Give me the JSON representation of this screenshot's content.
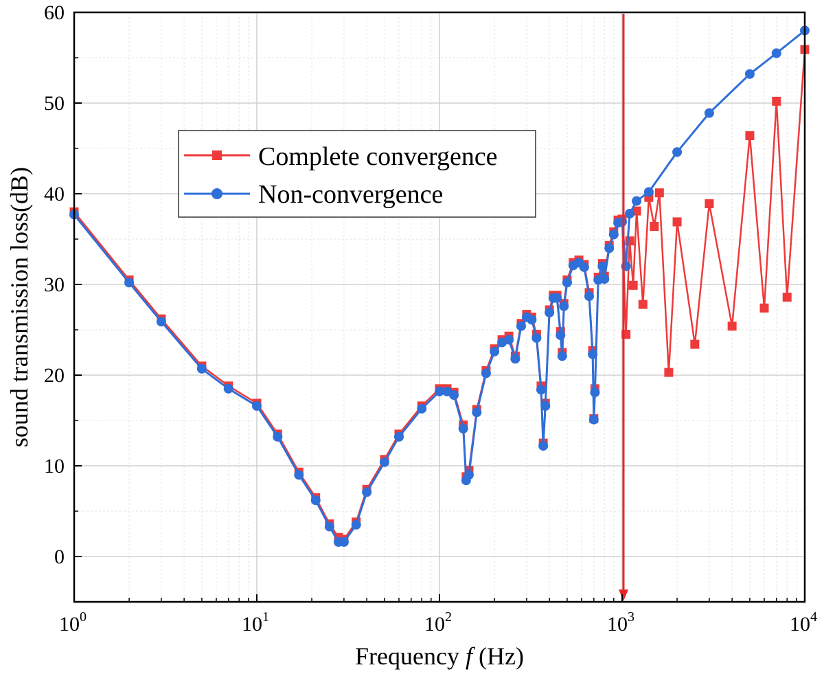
{
  "chart_data": {
    "type": "line",
    "xlabel_prefix": "Frequency ",
    "xlabel_var": "f",
    "xlabel_suffix": " (Hz)",
    "ylabel": "sound transmission loss(dB)",
    "xscale": "log",
    "xlim": [
      1,
      10000
    ],
    "ylim": [
      -5,
      60
    ],
    "x_ticks": [
      {
        "base": "10",
        "exp": "0",
        "value": 1
      },
      {
        "base": "10",
        "exp": "1",
        "value": 10
      },
      {
        "base": "10",
        "exp": "2",
        "value": 100
      },
      {
        "base": "10",
        "exp": "3",
        "value": 1000
      },
      {
        "base": "10",
        "exp": "4",
        "value": 10000
      }
    ],
    "y_ticks": [
      "0",
      "10",
      "20",
      "30",
      "40",
      "50",
      "60"
    ],
    "grid": true,
    "legend_position": "upper-left",
    "annotation": {
      "type": "vertical-arrow",
      "x": 1000,
      "from_y": 60,
      "to_y": -5,
      "color": "#e8262a"
    },
    "series": [
      {
        "name": "Complete convergence",
        "color": "#ee3a3a",
        "marker": "square",
        "x": [
          1,
          2,
          3,
          5,
          7,
          10,
          13,
          17,
          21,
          25,
          28,
          30,
          35,
          40,
          50,
          60,
          80,
          100,
          110,
          120,
          135,
          140,
          145,
          160,
          180,
          200,
          220,
          240,
          260,
          280,
          300,
          320,
          340,
          360,
          370,
          380,
          400,
          420,
          440,
          460,
          470,
          480,
          500,
          540,
          580,
          620,
          660,
          690,
          700,
          710,
          740,
          780,
          800,
          850,
          900,
          950,
          1000,
          1050,
          1100,
          1150,
          1200,
          1300,
          1400,
          1500,
          1600,
          1800,
          2000,
          2500,
          3000,
          4000,
          5000,
          6000,
          7000,
          8000,
          10000
        ],
        "y": [
          38,
          30.5,
          26.2,
          21,
          18.8,
          16.9,
          13.5,
          9.3,
          6.5,
          3.6,
          2.1,
          1.9,
          3.8,
          7.4,
          10.7,
          13.5,
          16.6,
          18.5,
          18.5,
          18.1,
          14.5,
          8.8,
          9.5,
          16.2,
          20.5,
          22.9,
          23.9,
          24.3,
          22.1,
          25.7,
          26.7,
          26.4,
          24.5,
          18.8,
          12.5,
          16.9,
          27.2,
          28.8,
          28.8,
          24.8,
          22.5,
          27.9,
          30.5,
          32.4,
          32.7,
          32.2,
          29.1,
          22.7,
          15.2,
          18.5,
          30.8,
          32.3,
          30.9,
          34.3,
          35.8,
          37.1,
          37.2,
          24.5,
          34.8,
          29.9,
          38.1,
          27.8,
          39.6,
          36.4,
          40.1,
          20.3,
          36.9,
          23.4,
          38.9,
          25.4,
          46.4,
          27.4,
          50.2,
          28.6,
          55.9
        ]
      },
      {
        "name": "Non-convergence",
        "color": "#2f6fd8",
        "marker": "circle",
        "x": [
          1,
          2,
          3,
          5,
          7,
          10,
          13,
          17,
          21,
          25,
          28,
          30,
          35,
          40,
          50,
          60,
          80,
          100,
          110,
          120,
          135,
          140,
          145,
          160,
          180,
          200,
          220,
          240,
          260,
          280,
          300,
          320,
          340,
          360,
          370,
          380,
          400,
          420,
          440,
          460,
          470,
          480,
          500,
          540,
          580,
          620,
          660,
          690,
          700,
          710,
          740,
          780,
          800,
          850,
          900,
          950,
          1000,
          1050,
          1100,
          1200,
          1400,
          2000,
          3000,
          5000,
          7000,
          10000
        ],
        "y": [
          37.7,
          30.2,
          25.9,
          20.7,
          18.5,
          16.6,
          13.2,
          9.0,
          6.2,
          3.3,
          1.6,
          1.6,
          3.5,
          7.1,
          10.4,
          13.2,
          16.3,
          18.2,
          18.2,
          17.8,
          14.1,
          8.4,
          9.0,
          15.9,
          20.2,
          22.6,
          23.6,
          23.9,
          21.8,
          25.4,
          26.4,
          26.1,
          24.1,
          18.4,
          12.2,
          16.6,
          26.9,
          28.5,
          28.5,
          24.4,
          22.1,
          27.6,
          30.2,
          32.1,
          32.4,
          31.9,
          28.7,
          22.3,
          15.1,
          18.1,
          30.5,
          32.0,
          30.6,
          34.0,
          35.5,
          36.8,
          36.9,
          32.0,
          37.8,
          39.2,
          40.2,
          44.6,
          48.9,
          53.2,
          55.5,
          58.0
        ]
      }
    ]
  }
}
